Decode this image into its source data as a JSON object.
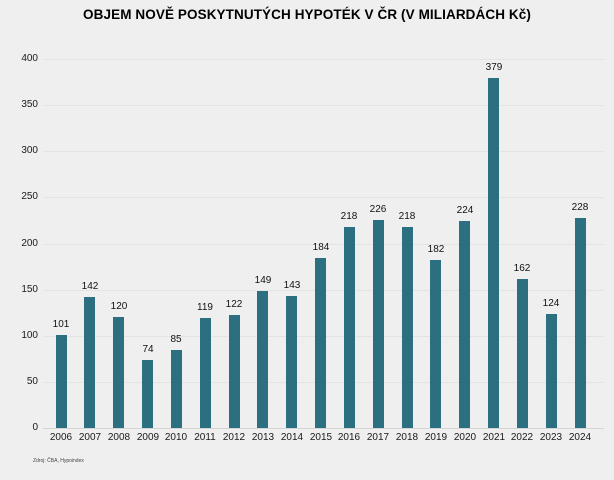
{
  "title": "OBJEM NOVĚ POSKYTNUTÝCH HYPOTÉK V ČR (V MILIARDÁCH Kč)",
  "source_note": "Zdroj: ČBA, Hypoindex",
  "colors": {
    "background": "#efefef",
    "bar": "#2b6f80",
    "gridline": "#e3e3e3",
    "axis_line": "#d5d5d5",
    "text": "#000000"
  },
  "chart_data": {
    "type": "bar",
    "title": "OBJEM NOVĚ POSKYTNUTÝCH HYPOTÉK V ČR (V MILIARDÁCH Kč)",
    "categories": [
      "2006",
      "2007",
      "2008",
      "2009",
      "2010",
      "2011",
      "2012",
      "2013",
      "2014",
      "2015",
      "2016",
      "2017",
      "2018",
      "2019",
      "2020",
      "2021",
      "2022",
      "2023",
      "2024"
    ],
    "values": [
      101,
      142,
      120,
      74,
      85,
      119,
      122,
      149,
      143,
      184,
      218,
      226,
      218,
      182,
      224,
      379,
      162,
      124,
      228
    ],
    "xlabel": "",
    "ylabel": "",
    "ylim": [
      0,
      400
    ],
    "ytick_step": 50,
    "grid": true,
    "data_labels": true,
    "legend": false,
    "source": "Zdroj: ČBA, Hypoindex"
  }
}
